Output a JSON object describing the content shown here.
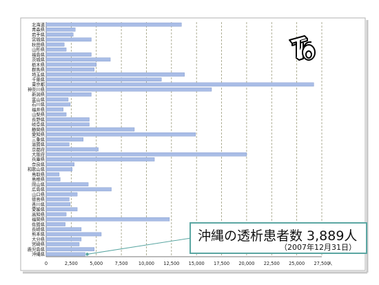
{
  "chart_data": {
    "type": "bar",
    "orientation": "horizontal",
    "categories": [
      "北海道",
      "青森県",
      "岩手県",
      "宮城県",
      "秋田県",
      "山形県",
      "福島県",
      "茨城県",
      "栃木県",
      "群馬県",
      "埼玉県",
      "千葉県",
      "東京都",
      "神奈川県",
      "新潟県",
      "富山県",
      "石川県",
      "福井県",
      "山梨県",
      "長野県",
      "岐阜県",
      "静岡県",
      "愛知県",
      "三重県",
      "滋賀県",
      "京都府",
      "大阪府",
      "兵庫県",
      "奈良県",
      "和歌山県",
      "鳥取県",
      "島根県",
      "岡山県",
      "広島県",
      "山口県",
      "徳島県",
      "香川県",
      "愛媛県",
      "高知県",
      "福岡県",
      "佐賀県",
      "長崎県",
      "熊本県",
      "大分県",
      "宮崎県",
      "鹿児島県",
      "沖縄県"
    ],
    "values": [
      13500,
      2900,
      2700,
      4500,
      1800,
      2000,
      4500,
      6400,
      5000,
      4800,
      13800,
      11500,
      26700,
      16500,
      4500,
      2200,
      2400,
      1700,
      2000,
      4300,
      4300,
      8800,
      14900,
      3700,
      2300,
      5200,
      20000,
      10800,
      2800,
      2600,
      1300,
      1400,
      4200,
      6500,
      3100,
      2300,
      2400,
      3100,
      2000,
      12300,
      1900,
      3500,
      5500,
      3500,
      3300,
      4800,
      3889
    ],
    "xlim": [
      0,
      27500
    ],
    "xticks": [
      "0",
      "2,500",
      "5,000",
      "7,500",
      "10,000",
      "12,500",
      "15,000",
      "17,500",
      "20,000",
      "22,500",
      "25,000",
      "27,500"
    ],
    "xunit": "人",
    "grid": "vertical-dashed",
    "colors": {
      "bar": "#a9bde6",
      "bar_stroke": "#7a93c9",
      "grid": "#9a9a7a"
    }
  },
  "callout": {
    "title": "沖縄の透析患者数 3,889人",
    "date": "（2007年12月31日）",
    "target_category": "沖縄県",
    "color": "#5aa6a2"
  },
  "logo": {
    "icon": "t6-logo-icon"
  }
}
